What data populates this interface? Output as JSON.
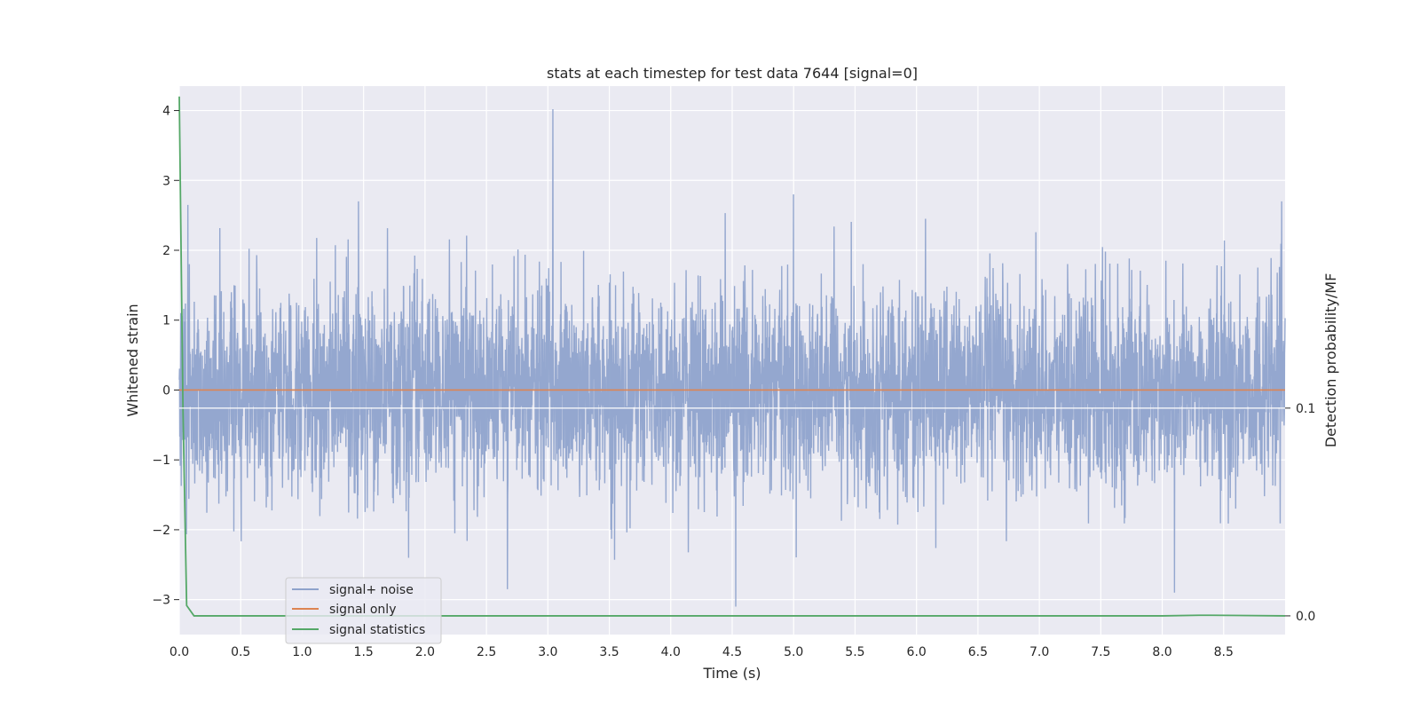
{
  "chart_data": {
    "type": "line",
    "title": "stats at each timestep for test data 7644 [signal=0]",
    "xlabel": "Time (s)",
    "ylabel": "Whitened strain",
    "ylabel_right": "Detection probability/MF",
    "xlim": [
      0.0,
      9.0
    ],
    "ylim": [
      -3.5,
      4.35
    ],
    "ylim_right": [
      -0.009,
      0.255
    ],
    "x_ticks": [
      0.0,
      0.5,
      1.0,
      1.5,
      2.0,
      2.5,
      3.0,
      3.5,
      4.0,
      4.5,
      5.0,
      5.5,
      6.0,
      6.5,
      7.0,
      7.5,
      8.0,
      8.5
    ],
    "x_tick_labels": [
      "0.0",
      "0.5",
      "1.0",
      "1.5",
      "2.0",
      "2.5",
      "3.0",
      "3.5",
      "4.0",
      "4.5",
      "5.0",
      "5.5",
      "6.0",
      "6.5",
      "7.0",
      "7.5",
      "8.0",
      "8.5"
    ],
    "y_ticks": [
      -3,
      -2,
      -1,
      0,
      1,
      2,
      3,
      4
    ],
    "y_tick_labels": [
      "−3",
      "−2",
      "−1",
      "0",
      "1",
      "2",
      "3",
      "4"
    ],
    "y_right_ticks": [
      0.0,
      0.1
    ],
    "y_right_tick_labels": [
      "0.0",
      "0.1"
    ],
    "grid": true,
    "legend_position": "lower-left",
    "series": [
      {
        "name": "signal+ noise",
        "axis": "left",
        "color": "#8fa3cc",
        "description": "dense noise trace, roughly zero-mean, spread about ±1.5 with peaks to 4.0 (t≈3.04) and -3.1 (t≈4.53)",
        "notable_points": [
          {
            "x": 3.04,
            "y": 4.02
          },
          {
            "x": 4.53,
            "y": -3.1
          },
          {
            "x": 5.0,
            "y": 2.8
          },
          {
            "x": 2.67,
            "y": -2.85
          },
          {
            "x": 0.07,
            "y": 2.65
          },
          {
            "x": 8.1,
            "y": -2.9
          }
        ]
      },
      {
        "name": "signal only",
        "axis": "left",
        "color": "#dd8452",
        "x": [
          0.0,
          9.0
        ],
        "y": [
          0.0,
          0.0
        ]
      },
      {
        "name": "signal statistics",
        "axis": "right",
        "color": "#55a868",
        "x": [
          0.0,
          0.03,
          0.06,
          0.12,
          2.0,
          4.0,
          6.0,
          8.0,
          8.3,
          8.4,
          9.0
        ],
        "y": [
          0.25,
          0.1,
          0.005,
          0.0,
          0.0,
          0.0,
          0.0,
          0.0,
          0.0003,
          0.0003,
          0.0
        ]
      }
    ]
  }
}
